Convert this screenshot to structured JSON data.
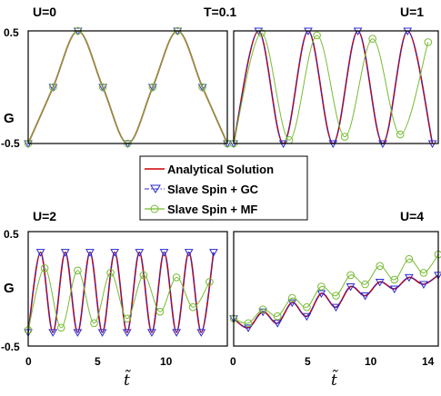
{
  "figure": {
    "top_annotation": "T=0.1",
    "ylabel": "G",
    "xlabel": "t̃",
    "legend": [
      {
        "label": "Analytical Solution",
        "color": "#cc0000",
        "style": "solid-line"
      },
      {
        "label": "Slave Spin + GC",
        "color": "#2a2ad0",
        "style": "dash-dot-triangle"
      },
      {
        "label": "Slave Spin + MF",
        "color": "#77bb33",
        "style": "line-circle"
      }
    ]
  },
  "chart_data": [
    {
      "type": "line",
      "title": "U=0",
      "ylabel": "G",
      "ylim": [
        -0.5,
        0.5
      ],
      "y_ticks": [
        "0.5",
        "-0.5"
      ],
      "xlim": [
        0,
        14
      ],
      "x_ticks": [],
      "series": [
        {
          "name": "Analytical Solution",
          "x": [
            0,
            1.75,
            3.5,
            5.25,
            7,
            8.75,
            10.5,
            12.25,
            14
          ],
          "values": [
            -0.5,
            0,
            0.5,
            0,
            -0.5,
            0,
            0.5,
            0,
            -0.5
          ]
        },
        {
          "name": "Slave Spin + GC",
          "x": [
            0,
            1.75,
            3.5,
            5.25,
            7,
            8.75,
            10.5,
            12.25,
            14
          ],
          "values": [
            -0.5,
            0,
            0.5,
            0,
            -0.5,
            0,
            0.5,
            0,
            -0.5
          ]
        },
        {
          "name": "Slave Spin + MF",
          "x": [
            0,
            1.75,
            3.5,
            5.25,
            7,
            8.75,
            10.5,
            12.25,
            14
          ],
          "values": [
            -0.5,
            0,
            0.5,
            0,
            -0.5,
            0,
            0.5,
            0,
            -0.5
          ]
        }
      ]
    },
    {
      "type": "line",
      "title": "U=1",
      "ylim": [
        -0.5,
        0.5
      ],
      "y_ticks": [],
      "xlim": [
        0,
        14
      ],
      "x_ticks": [],
      "series": [
        {
          "name": "Analytical Solution",
          "x": [
            0,
            1.7,
            3.4,
            5.1,
            6.8,
            8.5,
            10.2,
            11.9,
            13.6
          ],
          "values": [
            -0.5,
            0.5,
            -0.5,
            0.5,
            -0.5,
            0.5,
            -0.5,
            0.5,
            -0.5
          ]
        },
        {
          "name": "Slave Spin + GC",
          "x": [
            0,
            1.7,
            3.4,
            5.1,
            6.8,
            8.5,
            10.2,
            11.9,
            13.6
          ],
          "values": [
            -0.5,
            0.5,
            -0.5,
            0.5,
            -0.5,
            0.5,
            -0.5,
            0.5,
            -0.5
          ]
        },
        {
          "name": "Slave Spin + MF",
          "x": [
            0,
            1.9,
            3.8,
            5.7,
            7.6,
            9.5,
            11.4,
            13.3
          ],
          "values": [
            -0.5,
            0.48,
            -0.47,
            0.46,
            -0.44,
            0.43,
            -0.42,
            0.4
          ]
        }
      ]
    },
    {
      "type": "line",
      "title": "U=2",
      "ylabel": "G",
      "ylim": [
        -0.5,
        0.5
      ],
      "y_ticks": [
        "0.5",
        "-0.5"
      ],
      "xlim": [
        0,
        14.5
      ],
      "x_ticks": [
        "0",
        "5",
        "10"
      ],
      "xlabel": "t̃",
      "series": [
        {
          "name": "Analytical Solution",
          "x": [
            0,
            0.9,
            1.8,
            2.7,
            3.6,
            4.5,
            5.4,
            6.3,
            7.2,
            8.1,
            9.0,
            9.9,
            10.8,
            11.7,
            12.6,
            13.5
          ],
          "values": [
            -0.38,
            0.32,
            -0.38,
            0.32,
            -0.38,
            0.32,
            -0.38,
            0.32,
            -0.38,
            0.32,
            -0.38,
            0.32,
            -0.38,
            0.32,
            -0.38,
            0.32
          ]
        },
        {
          "name": "Slave Spin + GC",
          "x": [
            0,
            0.9,
            1.8,
            2.7,
            3.6,
            4.5,
            5.4,
            6.3,
            7.2,
            8.1,
            9.0,
            9.9,
            10.8,
            11.7,
            12.6,
            13.5
          ],
          "values": [
            -0.38,
            0.32,
            -0.38,
            0.32,
            -0.38,
            0.32,
            -0.38,
            0.32,
            -0.38,
            0.32,
            -0.38,
            0.32,
            -0.38,
            0.32,
            -0.38,
            0.32
          ]
        },
        {
          "name": "Slave Spin + MF",
          "x": [
            0,
            1.2,
            2.4,
            3.6,
            4.8,
            6.0,
            7.2,
            8.4,
            9.6,
            10.8,
            12.0,
            13.2
          ],
          "values": [
            -0.36,
            0.18,
            -0.34,
            0.16,
            -0.3,
            0.14,
            -0.26,
            0.12,
            -0.2,
            0.1,
            -0.16,
            0.06
          ]
        }
      ]
    },
    {
      "type": "line",
      "title": "U=4",
      "ylim": [
        -0.5,
        0.5
      ],
      "y_ticks": [],
      "xlim": [
        0,
        14
      ],
      "x_ticks": [
        "0",
        "5",
        "10",
        "14"
      ],
      "xlabel": "t̃",
      "series": [
        {
          "name": "Analytical Solution",
          "x": [
            0,
            1,
            2,
            3,
            4,
            5,
            6,
            7,
            8,
            9,
            10,
            11,
            12,
            13,
            14
          ],
          "values": [
            -0.26,
            -0.34,
            -0.2,
            -0.3,
            -0.12,
            -0.24,
            -0.04,
            -0.16,
            0.02,
            -0.06,
            0.06,
            0.0,
            0.1,
            0.04,
            0.12
          ]
        },
        {
          "name": "Slave Spin + GC",
          "x": [
            0,
            1,
            2,
            3,
            4,
            5,
            6,
            7,
            8,
            9,
            10,
            11,
            12,
            13,
            14
          ],
          "values": [
            -0.26,
            -0.34,
            -0.2,
            -0.3,
            -0.12,
            -0.24,
            -0.04,
            -0.16,
            0.02,
            -0.06,
            0.06,
            0.0,
            0.1,
            0.04,
            0.12
          ]
        },
        {
          "name": "Slave Spin + MF",
          "x": [
            0,
            1,
            2,
            3,
            4,
            5,
            6,
            7,
            8,
            9,
            10,
            11,
            12,
            13,
            14
          ],
          "values": [
            -0.26,
            -0.3,
            -0.18,
            -0.24,
            -0.08,
            -0.16,
            0.02,
            -0.06,
            0.12,
            0.04,
            0.2,
            0.08,
            0.26,
            0.14,
            0.3
          ]
        }
      ]
    }
  ]
}
